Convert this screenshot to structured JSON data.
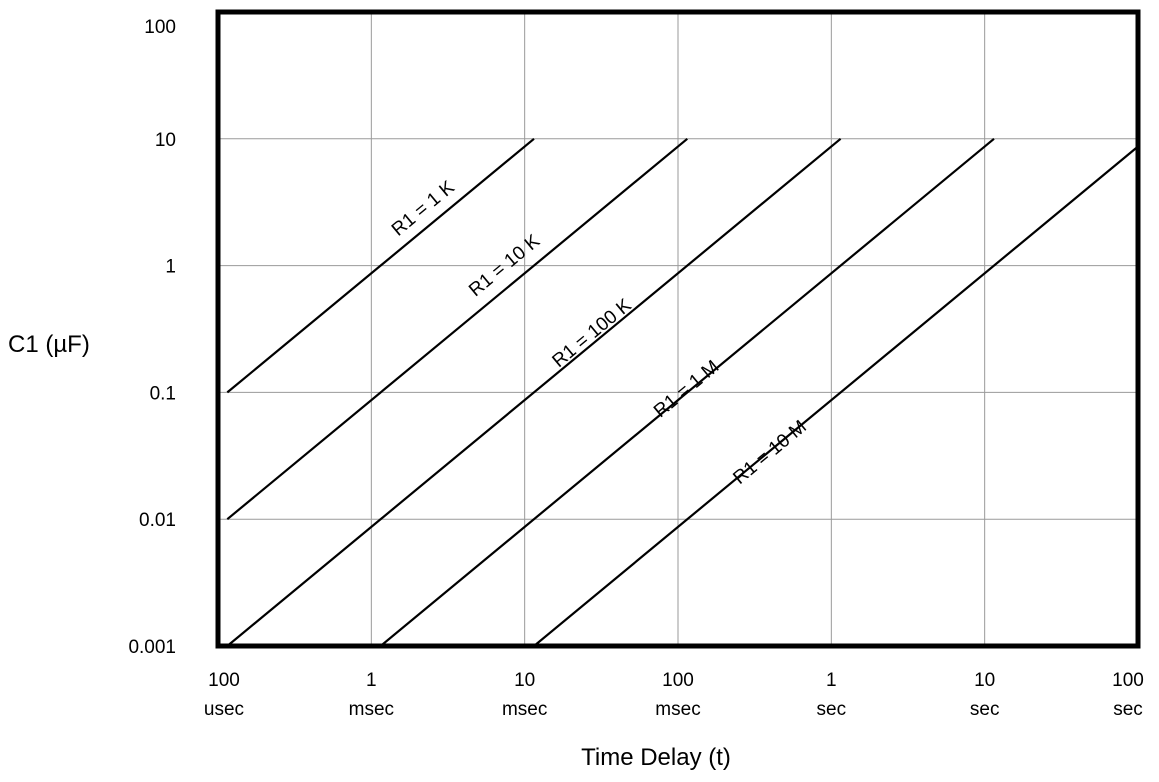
{
  "chart_data": {
    "type": "line",
    "xscale": "log",
    "yscale": "log",
    "xlabel": "Time Delay (t)",
    "ylabel": "C1 (µF)",
    "xlim": [
      0.0001,
      100
    ],
    "ylim": [
      0.001,
      100
    ],
    "grid": true,
    "x_ticks": [
      {
        "value": 0.0001,
        "line1": "100",
        "line2": "usec"
      },
      {
        "value": 0.001,
        "line1": "1",
        "line2": "msec"
      },
      {
        "value": 0.01,
        "line1": "10",
        "line2": "msec"
      },
      {
        "value": 0.1,
        "line1": "100",
        "line2": "msec"
      },
      {
        "value": 1,
        "line1": "1",
        "line2": "sec"
      },
      {
        "value": 10,
        "line1": "10",
        "line2": "sec"
      },
      {
        "value": 100,
        "line1": "100",
        "line2": "sec"
      }
    ],
    "y_ticks": [
      {
        "value": 100,
        "label": "100"
      },
      {
        "value": 10,
        "label": "10"
      },
      {
        "value": 1,
        "label": "1"
      },
      {
        "value": 0.1,
        "label": "0.1"
      },
      {
        "value": 0.01,
        "label": "0.01"
      },
      {
        "value": 0.001,
        "label": "0.001"
      }
    ],
    "series": [
      {
        "name": "R1 = 1 K",
        "x": [
          0.000115,
          0.0115
        ],
        "y": [
          0.1,
          10
        ]
      },
      {
        "name": "R1 = 10 K",
        "x": [
          0.000115,
          0.115
        ],
        "y": [
          0.01,
          10
        ]
      },
      {
        "name": "R1 = 100 K",
        "x": [
          0.000115,
          1.15
        ],
        "y": [
          0.001,
          10
        ]
      },
      {
        "name": "R1 = 1 M",
        "x": [
          0.00115,
          11.5
        ],
        "y": [
          0.001,
          10
        ]
      },
      {
        "name": "R1 = 10 M",
        "x": [
          0.0115,
          100
        ],
        "y": [
          0.001,
          8.7
        ]
      }
    ],
    "line_labels": [
      {
        "text": "R1 = 1 K",
        "x": 0.0023,
        "y": 2.6
      },
      {
        "text": "R1 = 10 K",
        "x": 0.0078,
        "y": 0.92
      },
      {
        "text": "R1 = 100 K",
        "x": 0.029,
        "y": 0.27
      },
      {
        "text": "R1 = 1 M",
        "x": 0.12,
        "y": 0.098
      },
      {
        "text": "R1 = 10 M",
        "x": 0.42,
        "y": 0.031
      }
    ]
  }
}
